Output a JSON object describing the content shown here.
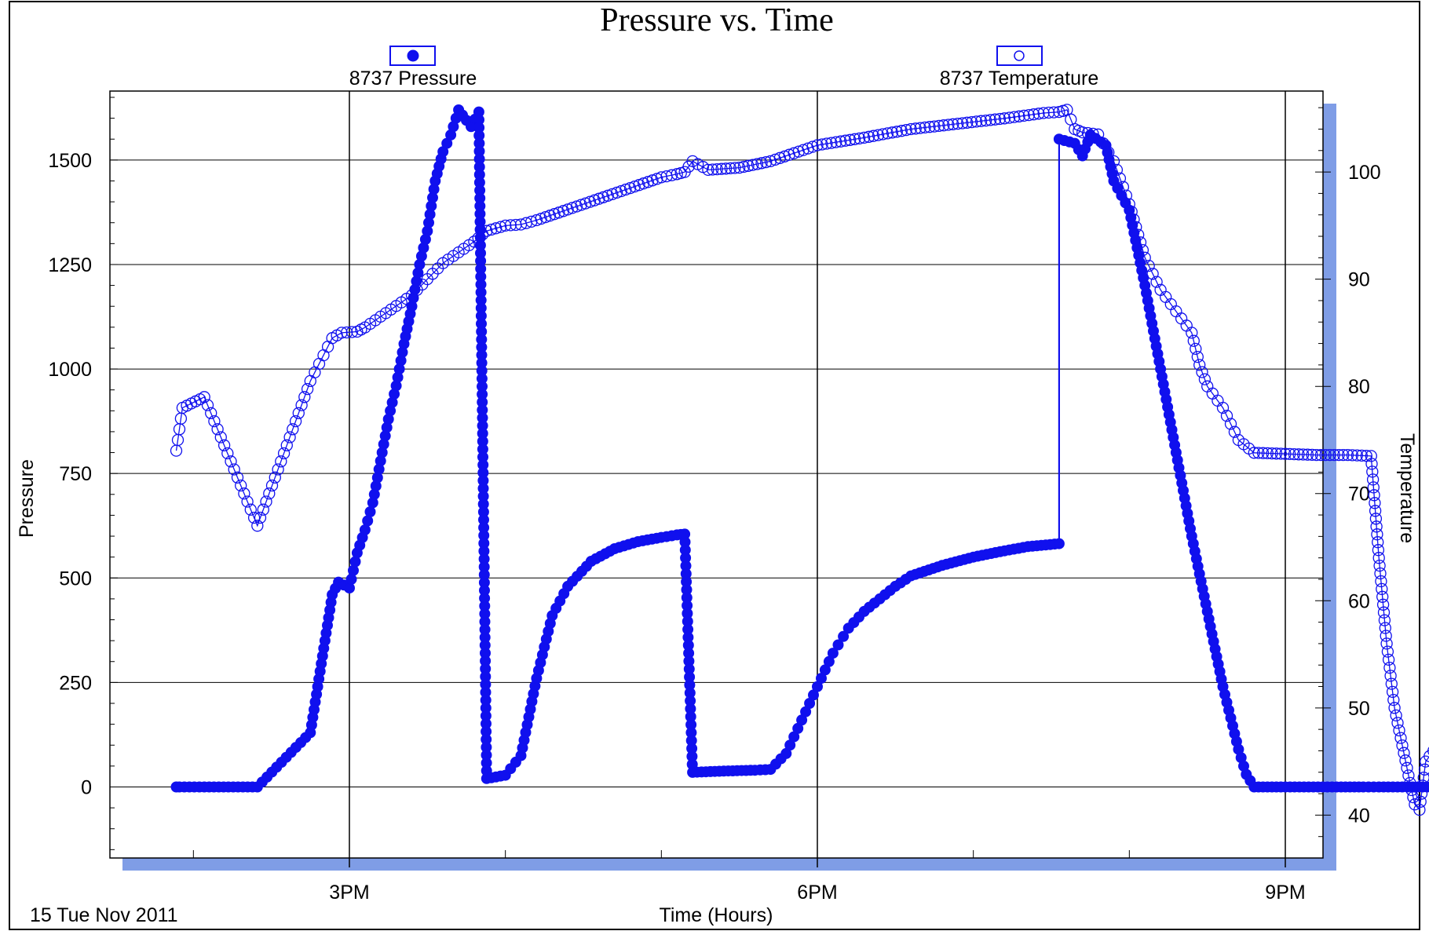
{
  "chart_data": {
    "type": "scatter",
    "title": "Pressure vs. Time",
    "xlabel": "Time (Hours)",
    "ylabel": "Pressure",
    "y2label": "Temperature",
    "footer_date": "15 Tue Nov 2011",
    "x_unit": "hours",
    "xlim": [
      13.55,
      21.25
    ],
    "ylim": [
      -170,
      1665
    ],
    "y2lim": [
      36,
      107.55
    ],
    "x_ticks": [
      {
        "value": 15,
        "label": "3PM"
      },
      {
        "value": 18,
        "label": "6PM"
      },
      {
        "value": 21,
        "label": "9PM"
      }
    ],
    "x_minor_ticks": [
      14,
      16,
      17,
      19,
      20
    ],
    "y_ticks": [
      0,
      250,
      500,
      750,
      1000,
      1250,
      1500
    ],
    "y2_ticks": [
      40,
      50,
      60,
      70,
      80,
      90,
      100
    ],
    "grid": true,
    "legend_placement": "top",
    "colors": {
      "series": "#1010ee",
      "shadow": "#7f9de6",
      "grid": "#000000"
    },
    "series": [
      {
        "name": "8737 Pressure",
        "axis": "left",
        "marker": "filled-circle",
        "points": [
          [
            13.89,
            0
          ],
          [
            13.91,
            0
          ],
          [
            14.07,
            0
          ],
          [
            14.41,
            0
          ],
          [
            14.75,
            130
          ],
          [
            14.89,
            460
          ],
          [
            14.93,
            490
          ],
          [
            15.0,
            476
          ],
          [
            15.05,
            560
          ],
          [
            15.1,
            615
          ],
          [
            15.15,
            680
          ],
          [
            15.2,
            780
          ],
          [
            15.25,
            880
          ],
          [
            15.3,
            960
          ],
          [
            15.35,
            1060
          ],
          [
            15.4,
            1150
          ],
          [
            15.45,
            1250
          ],
          [
            15.5,
            1330
          ],
          [
            15.55,
            1450
          ],
          [
            15.6,
            1520
          ],
          [
            15.65,
            1560
          ],
          [
            15.7,
            1620
          ],
          [
            15.75,
            1595
          ],
          [
            15.78,
            1580
          ],
          [
            15.83,
            1615
          ],
          [
            15.88,
            20
          ],
          [
            16.0,
            28
          ],
          [
            16.1,
            75
          ],
          [
            16.2,
            260
          ],
          [
            16.3,
            410
          ],
          [
            16.4,
            480
          ],
          [
            16.55,
            540
          ],
          [
            16.7,
            570
          ],
          [
            16.85,
            587
          ],
          [
            17.0,
            597
          ],
          [
            17.1,
            603
          ],
          [
            17.15,
            605
          ],
          [
            17.2,
            35
          ],
          [
            17.4,
            38
          ],
          [
            17.6,
            40
          ],
          [
            17.7,
            42
          ],
          [
            17.8,
            80
          ],
          [
            17.9,
            160
          ],
          [
            18.0,
            240
          ],
          [
            18.1,
            320
          ],
          [
            18.2,
            380
          ],
          [
            18.3,
            420
          ],
          [
            18.4,
            450
          ],
          [
            18.5,
            480
          ],
          [
            18.6,
            505
          ],
          [
            18.8,
            530
          ],
          [
            19.0,
            550
          ],
          [
            19.2,
            565
          ],
          [
            19.35,
            575
          ],
          [
            19.55,
            582
          ],
          [
            19.55,
            1550
          ],
          [
            19.65,
            1540
          ],
          [
            19.7,
            1510
          ],
          [
            19.75,
            1560
          ],
          [
            19.85,
            1535
          ],
          [
            19.9,
            1450
          ],
          [
            20.0,
            1380
          ],
          [
            20.1,
            1200
          ],
          [
            20.2,
            1000
          ],
          [
            20.3,
            800
          ],
          [
            20.4,
            600
          ],
          [
            20.5,
            420
          ],
          [
            20.6,
            240
          ],
          [
            20.7,
            90
          ],
          [
            20.75,
            30
          ],
          [
            20.8,
            0
          ],
          [
            21.0,
            0
          ],
          [
            21.3,
            0
          ],
          [
            21.5,
            0
          ],
          [
            21.6,
            0
          ],
          [
            21.75,
            0
          ],
          [
            21.85,
            0
          ],
          [
            21.94,
            0
          ]
        ]
      },
      {
        "name": "8737 Temperature",
        "axis": "right",
        "marker": "open-circle",
        "points": [
          [
            13.89,
            74
          ],
          [
            13.9,
            75
          ],
          [
            13.91,
            76
          ],
          [
            13.92,
            77
          ],
          [
            13.93,
            78
          ],
          [
            14.07,
            79
          ],
          [
            14.41,
            67
          ],
          [
            14.75,
            80.5
          ],
          [
            14.89,
            84.5
          ],
          [
            14.95,
            85
          ],
          [
            15.05,
            85.1
          ],
          [
            15.1,
            85.5
          ],
          [
            15.2,
            86.5
          ],
          [
            15.3,
            87.5
          ],
          [
            15.4,
            88.5
          ],
          [
            15.5,
            90
          ],
          [
            15.6,
            91.5
          ],
          [
            15.7,
            92.5
          ],
          [
            15.8,
            93.5
          ],
          [
            15.88,
            94.5
          ],
          [
            16.0,
            95
          ],
          [
            16.1,
            95.1
          ],
          [
            16.2,
            95.5
          ],
          [
            16.4,
            96.5
          ],
          [
            16.6,
            97.5
          ],
          [
            16.8,
            98.5
          ],
          [
            17.0,
            99.5
          ],
          [
            17.1,
            99.8
          ],
          [
            17.15,
            100
          ],
          [
            17.2,
            101
          ],
          [
            17.3,
            100.2
          ],
          [
            17.5,
            100.4
          ],
          [
            17.7,
            101
          ],
          [
            18.0,
            102.5
          ],
          [
            18.3,
            103.2
          ],
          [
            18.6,
            104
          ],
          [
            18.9,
            104.5
          ],
          [
            19.2,
            105
          ],
          [
            19.45,
            105.5
          ],
          [
            19.55,
            105.6
          ],
          [
            19.6,
            105.8
          ],
          [
            19.65,
            104
          ],
          [
            19.7,
            103.7
          ],
          [
            19.8,
            103.5
          ],
          [
            19.9,
            101
          ],
          [
            20.0,
            97
          ],
          [
            20.1,
            92
          ],
          [
            20.2,
            89
          ],
          [
            20.3,
            87
          ],
          [
            20.4,
            85
          ],
          [
            20.45,
            82
          ],
          [
            20.5,
            80
          ],
          [
            20.6,
            78
          ],
          [
            20.7,
            75
          ],
          [
            20.8,
            73.8
          ],
          [
            21.0,
            73.7
          ],
          [
            21.2,
            73.6
          ],
          [
            21.4,
            73.6
          ],
          [
            21.55,
            73.5
          ],
          [
            21.6,
            64
          ],
          [
            21.65,
            56
          ],
          [
            21.7,
            50
          ],
          [
            21.75,
            46.5
          ],
          [
            21.8,
            43
          ],
          [
            21.83,
            41
          ],
          [
            21.86,
            40.5
          ],
          [
            21.9,
            45
          ],
          [
            21.95,
            46
          ],
          [
            22.0,
            45.5
          ],
          [
            22.05,
            45.5
          ]
        ]
      }
    ]
  }
}
